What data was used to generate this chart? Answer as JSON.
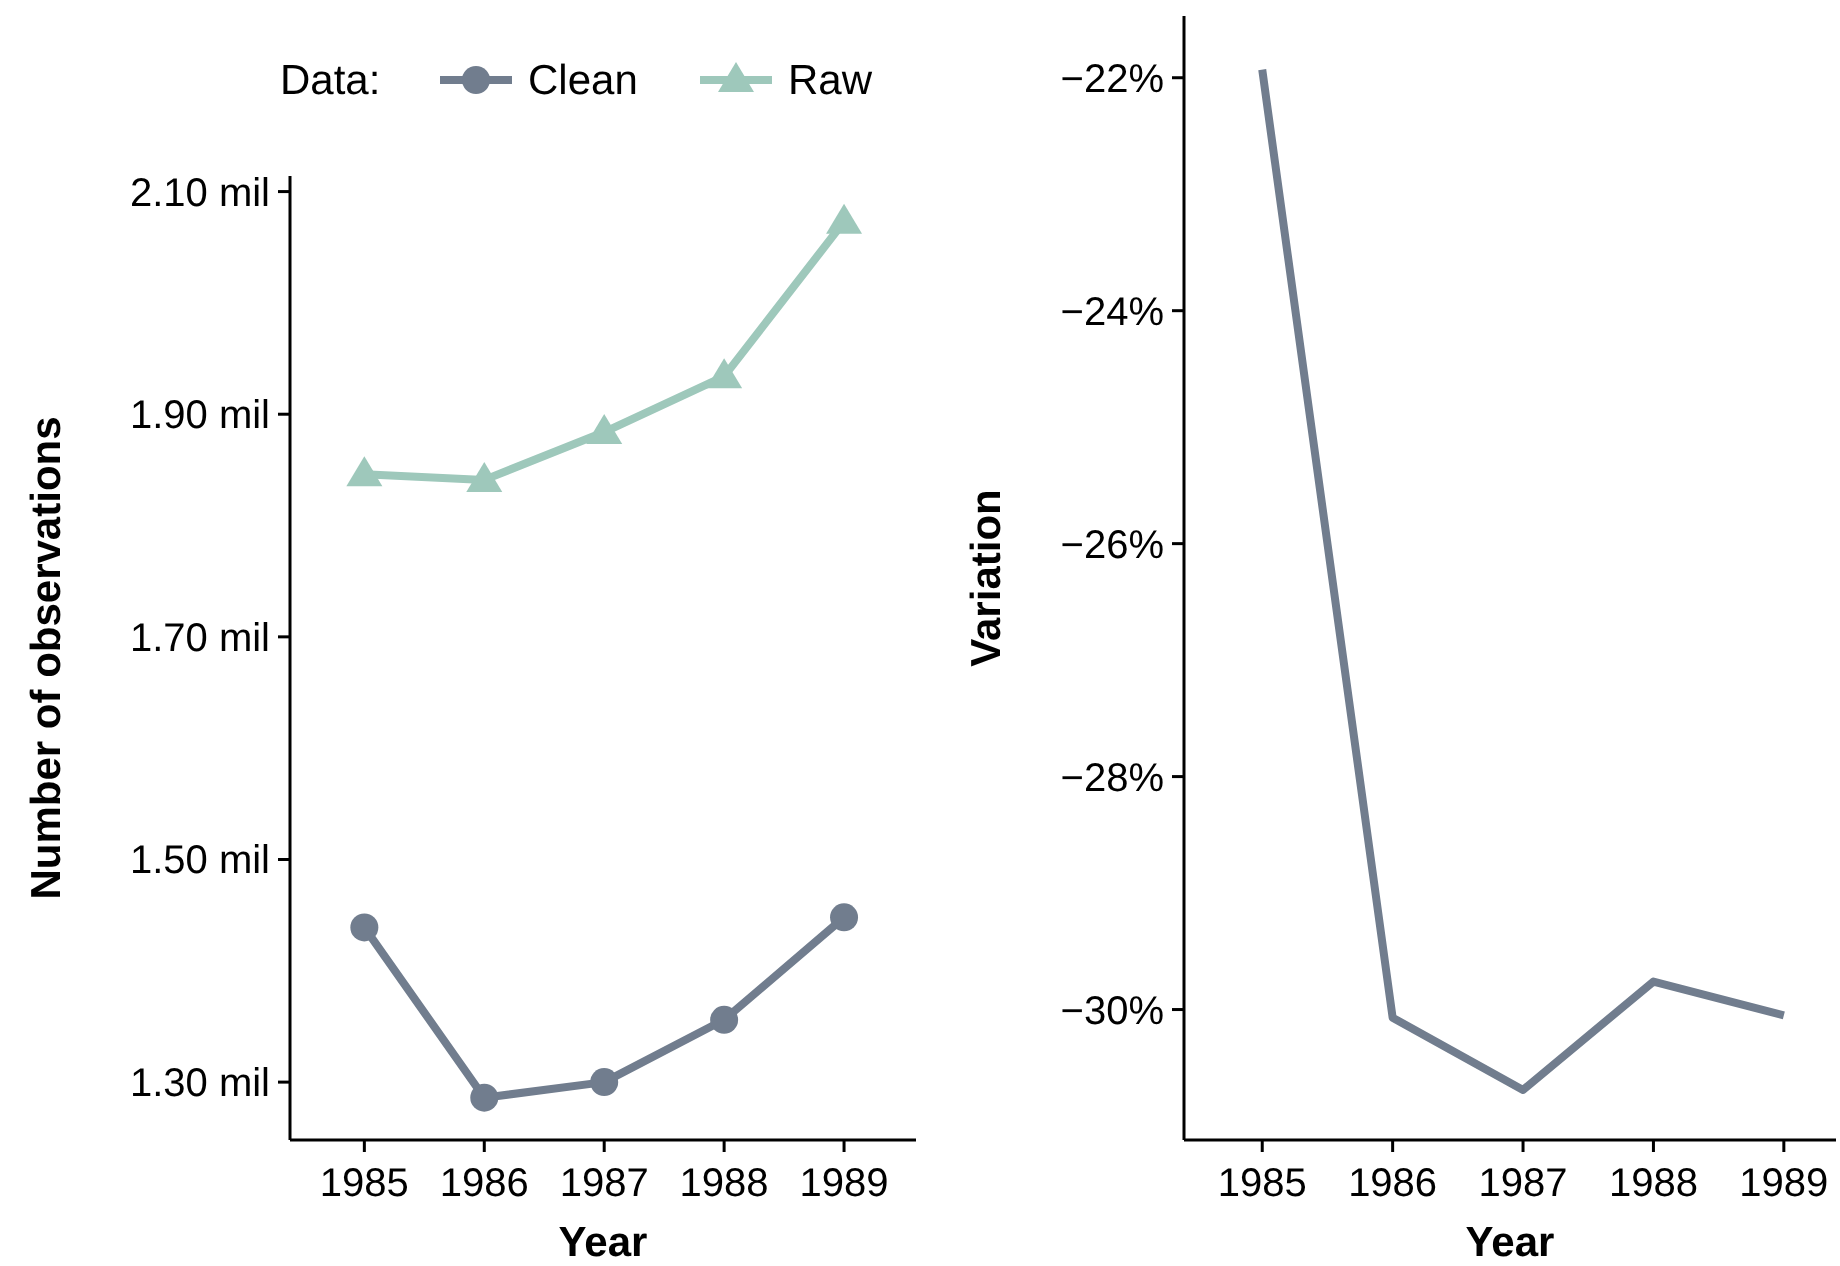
{
  "chart_data": [
    {
      "type": "line",
      "xlabel": "Year",
      "ylabel": "Number of observations",
      "legend_title": "Data:",
      "legend": "top",
      "grid": false,
      "x": [
        1985,
        1986,
        1987,
        1988,
        1989
      ],
      "xlim": [
        1984.38,
        1989.6
      ],
      "xticks": [
        1985,
        1986,
        1987,
        1988,
        1989
      ],
      "ylim": [
        1.248,
        2.114
      ],
      "yticks": [
        {
          "value": 1.3,
          "label": "1.30 mil"
        },
        {
          "value": 1.5,
          "label": "1.50 mil"
        },
        {
          "value": 1.7,
          "label": "1.70 mil"
        },
        {
          "value": 1.9,
          "label": "1.90 mil"
        },
        {
          "value": 2.1,
          "label": "2.10 mil"
        }
      ],
      "series": [
        {
          "name": "Clean",
          "color": "#717d8e",
          "marker": "circle",
          "values": [
            1.439,
            1.286,
            1.3,
            1.356,
            1.448
          ]
        },
        {
          "name": "Raw",
          "color": "#9ec8bb",
          "marker": "triangle",
          "values": [
            1.846,
            1.841,
            1.884,
            1.934,
            2.073
          ]
        }
      ]
    },
    {
      "type": "line",
      "xlabel": "Year",
      "ylabel": "Variation",
      "grid": false,
      "legend": false,
      "marker": "none",
      "x": [
        1985,
        1986,
        1987,
        1988,
        1989
      ],
      "xlim": [
        1984.4,
        1989.4
      ],
      "xticks": [
        1985,
        1986,
        1987,
        1988,
        1989
      ],
      "ylim": [
        -31.12,
        -21.47
      ],
      "yticks": [
        {
          "value": -30,
          "label": "−30%"
        },
        {
          "value": -28,
          "label": "−28%"
        },
        {
          "value": -26,
          "label": "−26%"
        },
        {
          "value": -24,
          "label": "−24%"
        },
        {
          "value": -22,
          "label": "−22%"
        }
      ],
      "series": [
        {
          "color": "#717d8e",
          "values": [
            -21.93,
            -30.07,
            -30.69,
            -29.76,
            -30.05
          ]
        }
      ]
    }
  ]
}
